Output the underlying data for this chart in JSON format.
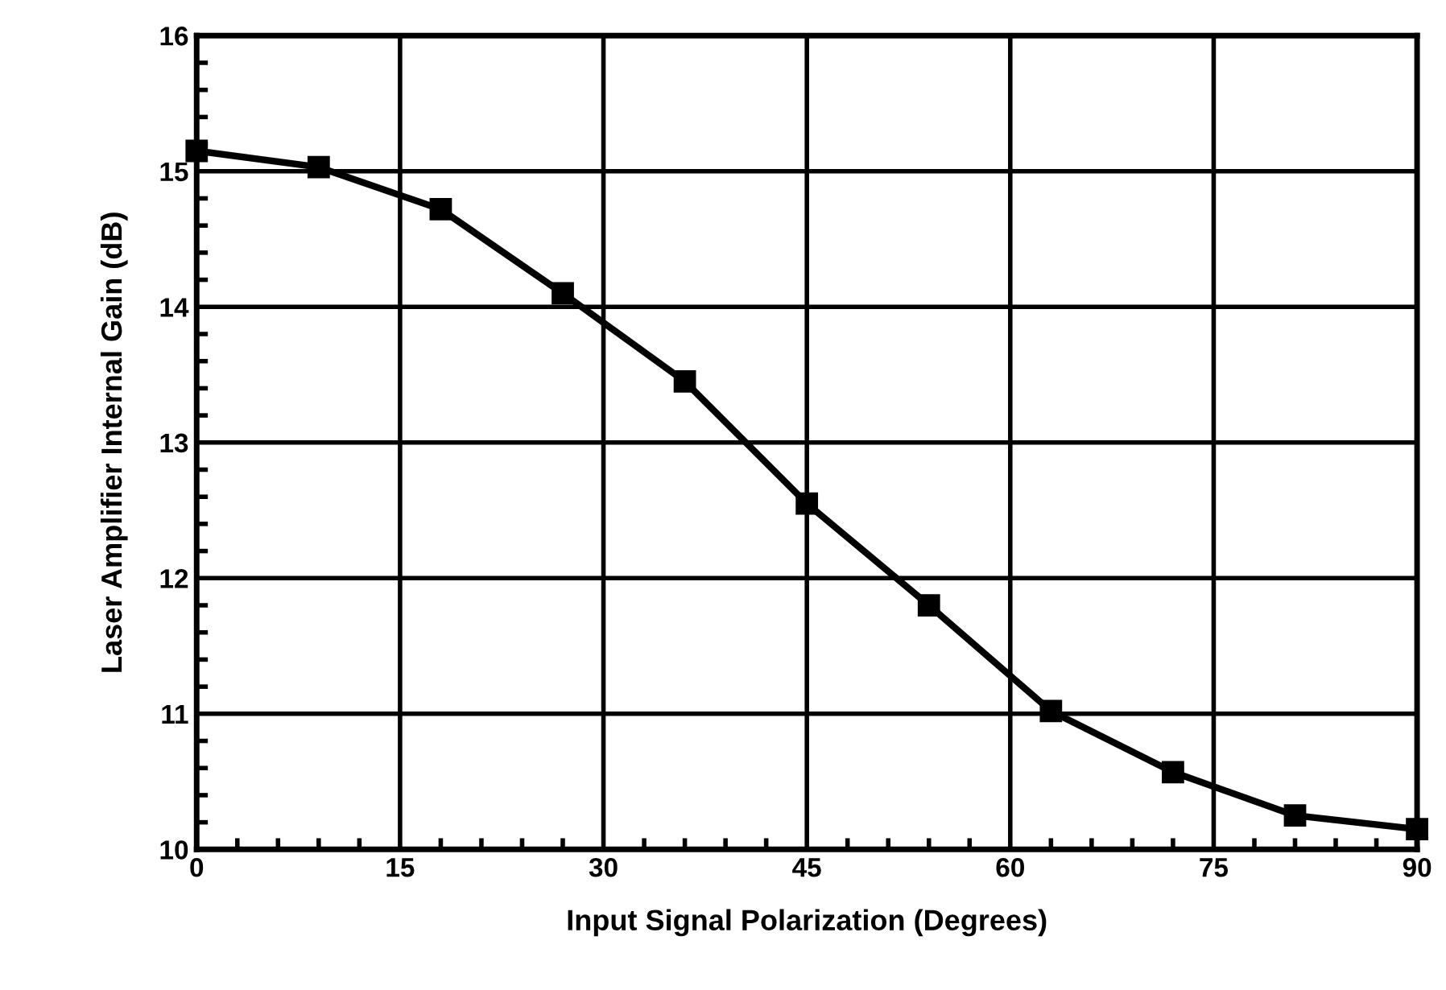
{
  "chart_data": {
    "type": "line",
    "xlabel": "Input Signal Polarization (Degrees)",
    "ylabel": "Laser Amplifier Internal Gain (dB)",
    "x": [
      0,
      9,
      18,
      27,
      36,
      45,
      54,
      63,
      72,
      81,
      90
    ],
    "series": [
      {
        "color": "#000000",
        "values": [
          15.15,
          15.03,
          14.72,
          14.1,
          13.45,
          12.55,
          11.8,
          11.02,
          10.57,
          10.25,
          10.15
        ]
      }
    ],
    "xlim": [
      0,
      90
    ],
    "xticks": [
      0,
      15,
      30,
      45,
      60,
      75,
      90
    ],
    "ylim": [
      10,
      16
    ],
    "yticks": [
      10,
      11,
      12,
      13,
      14,
      15,
      16
    ],
    "grid": true,
    "marker": "square",
    "line_style": "solid"
  }
}
